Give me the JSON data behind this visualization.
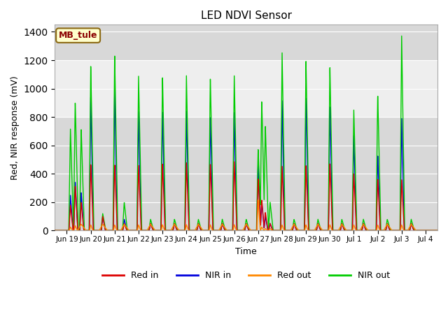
{
  "title": "LED NDVI Sensor",
  "ylabel": "Red, NIR response (mV)",
  "xlabel": "Time",
  "xlim_start": -0.5,
  "xlim_end": 15.5,
  "ylim": [
    0,
    1450
  ],
  "yticks": [
    0,
    200,
    400,
    600,
    800,
    1000,
    1200,
    1400
  ],
  "xtick_labels": [
    "Jun 19",
    "Jun 20",
    "Jun 21",
    "Jun 22",
    "Jun 23",
    "Jun 24",
    "Jun 25",
    "Jun 26",
    "Jun 27",
    "Jun 28",
    "Jun 29",
    "Jun 30",
    "Jul 1",
    "Jul 2",
    "Jul 3",
    "Jul 4"
  ],
  "xtick_positions": [
    0,
    1,
    2,
    3,
    4,
    5,
    6,
    7,
    8,
    9,
    10,
    11,
    12,
    13,
    14,
    15
  ],
  "annotation_text": "MB_tule",
  "colors": {
    "red_in": "#dd0000",
    "nir_in": "#0000dd",
    "red_out": "#ff8800",
    "nir_out": "#00cc00"
  },
  "legend_labels": [
    "Red in",
    "NIR in",
    "Red out",
    "NIR out"
  ],
  "plot_bg_dark": "#d8d8d8",
  "plot_bg_light": "#eeeeee",
  "shaded_y1": 800,
  "shaded_y2": 1200,
  "cycles": [
    [
      0.15,
      180,
      250,
      25,
      720
    ],
    [
      0.35,
      320,
      350,
      35,
      920
    ],
    [
      0.6,
      200,
      270,
      30,
      720
    ],
    [
      1.0,
      470,
      950,
      40,
      1170
    ],
    [
      1.5,
      100,
      100,
      35,
      120
    ],
    [
      2.0,
      470,
      1010,
      40,
      1250
    ],
    [
      2.4,
      50,
      80,
      20,
      200
    ],
    [
      3.0,
      460,
      840,
      40,
      1090
    ],
    [
      3.5,
      50,
      50,
      20,
      80
    ],
    [
      4.0,
      480,
      855,
      42,
      1100
    ],
    [
      4.5,
      50,
      50,
      20,
      80
    ],
    [
      5.0,
      480,
      845,
      42,
      1095
    ],
    [
      5.5,
      50,
      50,
      20,
      80
    ],
    [
      6.0,
      480,
      820,
      42,
      1095
    ],
    [
      6.5,
      50,
      50,
      20,
      80
    ],
    [
      7.0,
      490,
      840,
      42,
      1100
    ],
    [
      7.5,
      50,
      50,
      20,
      80
    ],
    [
      8.0,
      370,
      480,
      220,
      580
    ],
    [
      8.15,
      220,
      200,
      25,
      930
    ],
    [
      8.3,
      130,
      100,
      15,
      750
    ],
    [
      8.5,
      50,
      50,
      15,
      200
    ],
    [
      9.0,
      460,
      930,
      40,
      1270
    ],
    [
      9.5,
      50,
      50,
      20,
      80
    ],
    [
      10.0,
      460,
      940,
      40,
      1200
    ],
    [
      10.5,
      50,
      50,
      20,
      80
    ],
    [
      11.0,
      480,
      890,
      42,
      1170
    ],
    [
      11.5,
      50,
      50,
      20,
      80
    ],
    [
      12.0,
      400,
      670,
      40,
      850
    ],
    [
      12.4,
      50,
      50,
      20,
      80
    ],
    [
      13.0,
      370,
      540,
      40,
      970
    ],
    [
      13.4,
      50,
      50,
      20,
      80
    ],
    [
      14.0,
      360,
      795,
      40,
      1380
    ],
    [
      14.4,
      50,
      50,
      20,
      80
    ]
  ],
  "orange_bumps": [
    0.6,
    1.5,
    2.4,
    3.5,
    4.5,
    5.5,
    6.5,
    7.5,
    9.5,
    10.5,
    11.5,
    12.4,
    13.4,
    14.4
  ]
}
